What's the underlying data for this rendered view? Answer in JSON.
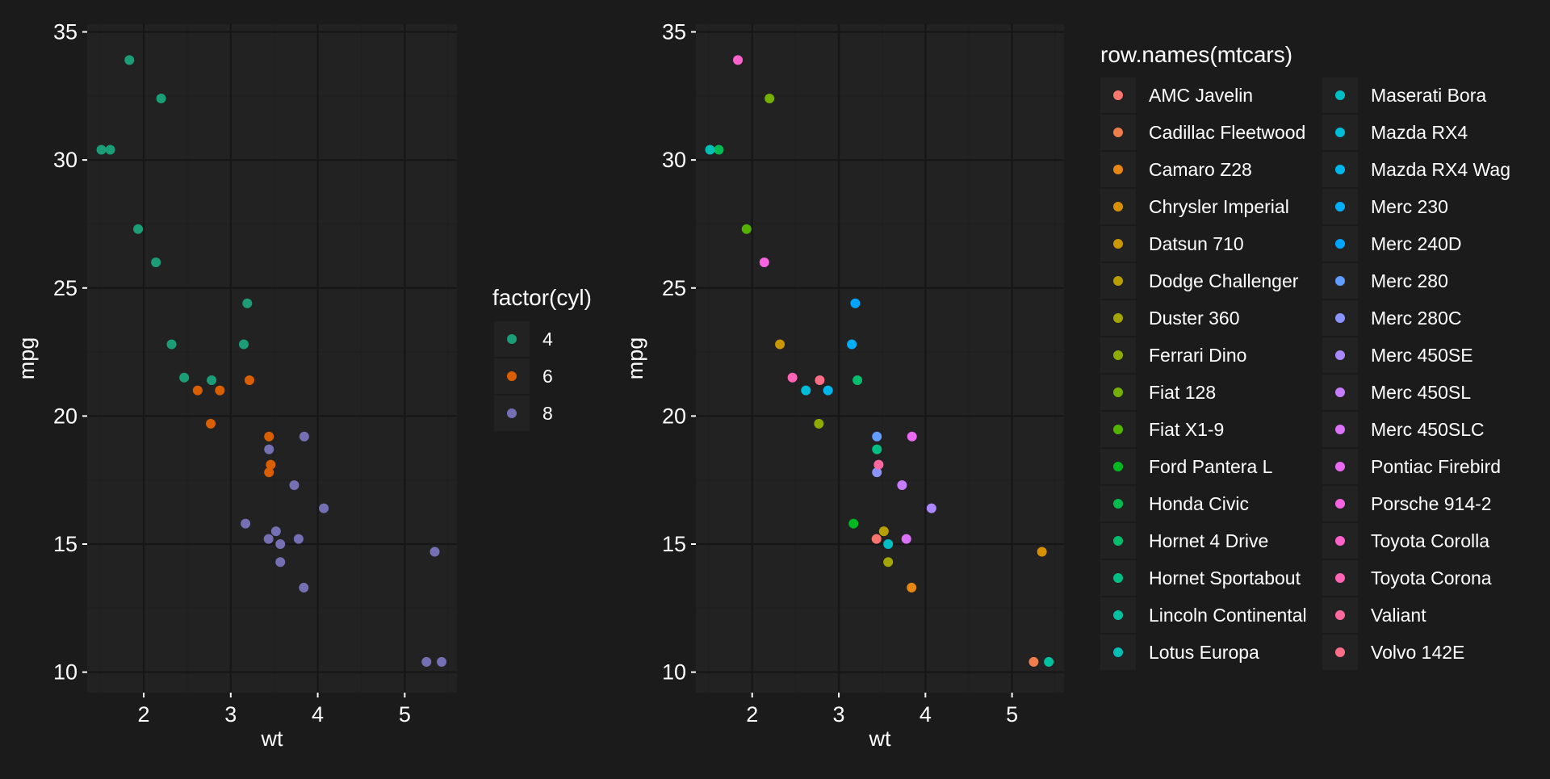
{
  "colors": {
    "background": "#1b1b1b",
    "panel": "#222222",
    "grid_major": "#161616",
    "grid_minor": "#1f1f1f",
    "text": "#ffffff",
    "cyl_4": "#1b9e77",
    "cyl_6": "#d95f02",
    "cyl_8": "#7570b3"
  },
  "chart_data": [
    {
      "type": "scatter",
      "title": "",
      "xlabel": "wt",
      "ylabel": "mpg",
      "xlim": [
        1.35,
        5.6
      ],
      "ylim": [
        9.2,
        35.3
      ],
      "xticks": [
        2,
        3,
        4,
        5
      ],
      "yticks": [
        10,
        15,
        20,
        25,
        30,
        35
      ],
      "grid": true,
      "legend_title": "factor(cyl)",
      "legend_position": "right",
      "series": [
        {
          "name": "4",
          "color": "#1b9e77",
          "points": [
            [
              2.32,
              22.8
            ],
            [
              3.19,
              24.4
            ],
            [
              3.15,
              22.8
            ],
            [
              2.2,
              32.4
            ],
            [
              1.615,
              30.4
            ],
            [
              1.835,
              33.9
            ],
            [
              2.465,
              21.5
            ],
            [
              1.935,
              27.3
            ],
            [
              2.14,
              26.0
            ],
            [
              1.513,
              30.4
            ],
            [
              2.78,
              21.4
            ]
          ]
        },
        {
          "name": "6",
          "color": "#d95f02",
          "points": [
            [
              2.62,
              21.0
            ],
            [
              2.875,
              21.0
            ],
            [
              3.215,
              21.4
            ],
            [
              3.46,
              18.1
            ],
            [
              3.44,
              19.2
            ],
            [
              3.44,
              17.8
            ],
            [
              2.77,
              19.7
            ]
          ]
        },
        {
          "name": "8",
          "color": "#7570b3",
          "points": [
            [
              3.44,
              18.7
            ],
            [
              3.57,
              14.3
            ],
            [
              4.07,
              16.4
            ],
            [
              3.73,
              17.3
            ],
            [
              3.78,
              15.2
            ],
            [
              5.25,
              10.4
            ],
            [
              5.424,
              10.4
            ],
            [
              5.345,
              14.7
            ],
            [
              3.52,
              15.5
            ],
            [
              3.435,
              15.2
            ],
            [
              3.84,
              13.3
            ],
            [
              3.845,
              19.2
            ],
            [
              3.17,
              15.8
            ],
            [
              3.57,
              15.0
            ]
          ]
        }
      ]
    },
    {
      "type": "scatter",
      "title": "",
      "xlabel": "wt",
      "ylabel": "mpg",
      "xlim": [
        1.35,
        5.6
      ],
      "ylim": [
        9.2,
        35.3
      ],
      "xticks": [
        2,
        3,
        4,
        5
      ],
      "yticks": [
        10,
        15,
        20,
        25,
        30,
        35
      ],
      "grid": true,
      "legend_title": "row.names(mtcars)",
      "legend_position": "right",
      "legend_columns": 2,
      "series": [
        {
          "name": "AMC Javelin",
          "color": "#F8766D",
          "points": [
            [
              3.435,
              15.2
            ]
          ]
        },
        {
          "name": "Cadillac Fleetwood",
          "color": "#F07E4D",
          "points": [
            [
              5.25,
              10.4
            ]
          ]
        },
        {
          "name": "Camaro Z28",
          "color": "#E68613",
          "points": [
            [
              3.84,
              13.3
            ]
          ]
        },
        {
          "name": "Chrysler Imperial",
          "color": "#D89000",
          "points": [
            [
              5.345,
              14.7
            ]
          ]
        },
        {
          "name": "Datsun 710",
          "color": "#C99800",
          "points": [
            [
              2.32,
              22.8
            ]
          ]
        },
        {
          "name": "Dodge Challenger",
          "color": "#B79F00",
          "points": [
            [
              3.52,
              15.5
            ]
          ]
        },
        {
          "name": "Duster 360",
          "color": "#A3A500",
          "points": [
            [
              3.57,
              14.3
            ]
          ]
        },
        {
          "name": "Ferrari Dino",
          "color": "#8EAB00",
          "points": [
            [
              2.77,
              19.7
            ]
          ]
        },
        {
          "name": "Fiat 128",
          "color": "#74B000",
          "points": [
            [
              2.2,
              32.4
            ]
          ]
        },
        {
          "name": "Fiat X1-9",
          "color": "#53B400",
          "points": [
            [
              1.935,
              27.3
            ]
          ]
        },
        {
          "name": "Ford Pantera L",
          "color": "#00B81F",
          "points": [
            [
              3.17,
              15.8
            ]
          ]
        },
        {
          "name": "Honda Civic",
          "color": "#00BB4E",
          "points": [
            [
              1.615,
              30.4
            ]
          ]
        },
        {
          "name": "Hornet 4 Drive",
          "color": "#00BE6C",
          "points": [
            [
              3.215,
              21.4
            ]
          ]
        },
        {
          "name": "Hornet Sportabout",
          "color": "#00C086",
          "points": [
            [
              3.44,
              18.7
            ]
          ]
        },
        {
          "name": "Lincoln Continental",
          "color": "#00C19F",
          "points": [
            [
              5.424,
              10.4
            ]
          ]
        },
        {
          "name": "Lotus Europa",
          "color": "#00C0B5",
          "points": [
            [
              1.513,
              30.4
            ]
          ]
        },
        {
          "name": "Maserati Bora",
          "color": "#00BFC4",
          "points": [
            [
              3.57,
              15.0
            ]
          ]
        },
        {
          "name": "Mazda RX4",
          "color": "#00BCD8",
          "points": [
            [
              2.62,
              21.0
            ]
          ]
        },
        {
          "name": "Mazda RX4 Wag",
          "color": "#00B6EB",
          "points": [
            [
              2.875,
              21.0
            ]
          ]
        },
        {
          "name": "Merc 230",
          "color": "#00AEF9",
          "points": [
            [
              3.15,
              22.8
            ]
          ]
        },
        {
          "name": "Merc 240D",
          "color": "#00A5FF",
          "points": [
            [
              3.19,
              24.4
            ]
          ]
        },
        {
          "name": "Merc 280",
          "color": "#619CFF",
          "points": [
            [
              3.44,
              19.2
            ]
          ]
        },
        {
          "name": "Merc 280C",
          "color": "#8B93FF",
          "points": [
            [
              3.44,
              17.8
            ]
          ]
        },
        {
          "name": "Merc 450SE",
          "color": "#AC88FF",
          "points": [
            [
              4.07,
              16.4
            ]
          ]
        },
        {
          "name": "Merc 450SL",
          "color": "#C77CFF",
          "points": [
            [
              3.73,
              17.3
            ]
          ]
        },
        {
          "name": "Merc 450SLC",
          "color": "#DC71FA",
          "points": [
            [
              3.78,
              15.2
            ]
          ]
        },
        {
          "name": "Pontiac Firebird",
          "color": "#EB69F0",
          "points": [
            [
              3.845,
              19.2
            ]
          ]
        },
        {
          "name": "Porsche 914-2",
          "color": "#F763E0",
          "points": [
            [
              2.14,
              26.0
            ]
          ]
        },
        {
          "name": "Toyota Corolla",
          "color": "#FF61CC",
          "points": [
            [
              1.835,
              33.9
            ]
          ]
        },
        {
          "name": "Toyota Corona",
          "color": "#FF63B6",
          "points": [
            [
              2.465,
              21.5
            ]
          ]
        },
        {
          "name": "Valiant",
          "color": "#FF689F",
          "points": [
            [
              3.46,
              18.1
            ]
          ]
        },
        {
          "name": "Volvo 142E",
          "color": "#FC6F86",
          "points": [
            [
              2.78,
              21.4
            ]
          ]
        }
      ]
    }
  ]
}
